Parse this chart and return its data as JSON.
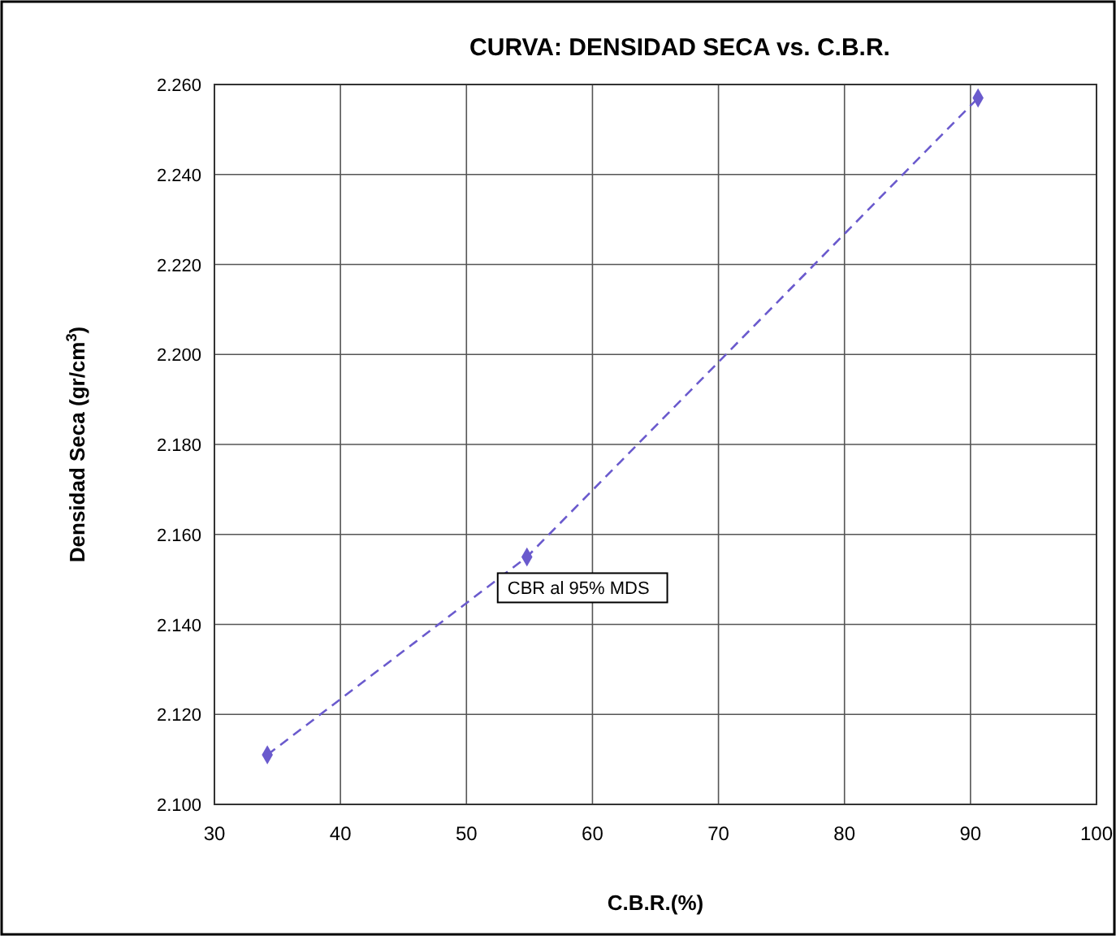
{
  "chart_data": {
    "type": "line",
    "title": "CURVA: DENSIDAD SECA vs. C.B.R.",
    "xlabel": "C.B.R.(%)",
    "ylabel": "Densidad  Seca (gr/cm$^{3}$)",
    "x": [
      34.2,
      54.8,
      90.6
    ],
    "series": [
      {
        "color": "#6a5acd",
        "values": [
          2.111,
          2.155,
          2.257
        ]
      }
    ],
    "annotations": [
      {
        "text": "CBR al 95% MDS",
        "x": 54.8,
        "y": 2.155
      }
    ],
    "xlim": [
      30,
      100
    ],
    "xticks": [
      30,
      40,
      50,
      60,
      70,
      80,
      90,
      100
    ],
    "ylim": [
      2.1,
      2.26
    ],
    "yticks": [
      {
        "value": 2.1,
        "label": "2.100"
      },
      {
        "value": 2.12,
        "label": "2.120"
      },
      {
        "value": 2.14,
        "label": "2.140"
      },
      {
        "value": 2.16,
        "label": "2.160"
      },
      {
        "value": 2.18,
        "label": "2.180"
      },
      {
        "value": 2.2,
        "label": "2.200"
      },
      {
        "value": 2.22,
        "label": "2.220"
      },
      {
        "value": 2.24,
        "label": "2.240"
      },
      {
        "value": 2.26,
        "label": "2.260"
      }
    ],
    "grid": true,
    "marker": "diamond",
    "line_style": "dashed"
  }
}
